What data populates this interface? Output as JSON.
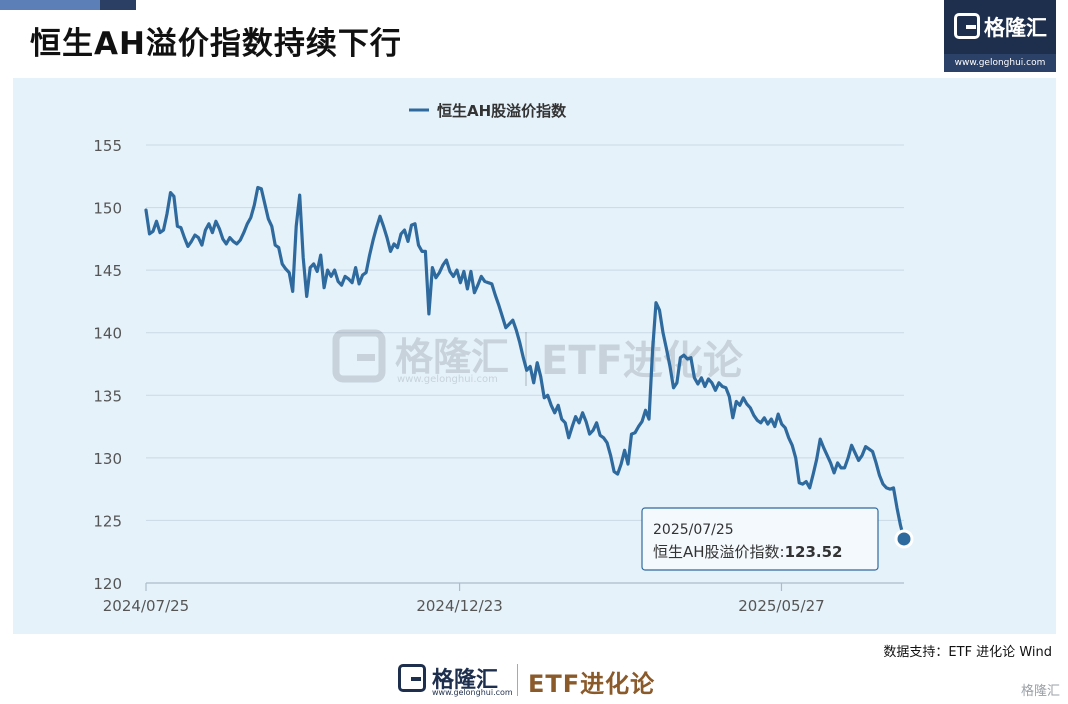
{
  "header": {
    "title": "恒生AH溢价指数持续下行",
    "logo_name": "格隆汇",
    "logo_url": "www.gelonghui.com"
  },
  "chart_data": {
    "type": "line",
    "title": "恒生AH溢价指数持续下行",
    "xlabel": "",
    "ylabel": "",
    "ylim": [
      120,
      155
    ],
    "yticks": [
      120,
      125,
      130,
      135,
      140,
      145,
      150,
      155
    ],
    "x_tick_labels": [
      "2024/07/25",
      "2024/12/23",
      "2025/05/27"
    ],
    "x_range": [
      "2024/07/25",
      "2025/07/25"
    ],
    "grid": "horizontal",
    "legend_position": "top-center",
    "color": "#2f6a9e",
    "series": [
      {
        "name": "恒生AH股溢价指数",
        "values": [
          149.8,
          147.9,
          148.1,
          148.9,
          148.0,
          148.2,
          149.5,
          151.2,
          150.9,
          148.5,
          148.4,
          147.6,
          146.9,
          147.3,
          147.8,
          147.6,
          147.0,
          148.2,
          148.7,
          148.0,
          148.9,
          148.3,
          147.5,
          147.1,
          147.6,
          147.3,
          147.1,
          147.4,
          148.0,
          148.7,
          149.2,
          150.2,
          151.6,
          151.5,
          150.3,
          149.1,
          148.5,
          147.0,
          146.8,
          145.5,
          145.1,
          144.8,
          143.3,
          148.5,
          151.0,
          146.0,
          142.9,
          145.2,
          145.5,
          144.9,
          146.2,
          143.6,
          145.0,
          144.5,
          145.0,
          144.1,
          143.8,
          144.5,
          144.3,
          144.0,
          145.2,
          143.9,
          144.6,
          144.8,
          146.2,
          147.4,
          148.4,
          149.3,
          148.5,
          147.6,
          146.5,
          147.1,
          146.8,
          147.9,
          148.2,
          147.3,
          148.6,
          148.7,
          147.0,
          146.5,
          146.5,
          141.5,
          145.2,
          144.4,
          144.8,
          145.4,
          145.8,
          144.9,
          144.5,
          145.0,
          144.0,
          144.9,
          143.5,
          144.9,
          143.2,
          143.8,
          144.5,
          144.1,
          144.0,
          143.9,
          143.0,
          142.2,
          141.3,
          140.4,
          140.7,
          141.0,
          140.2,
          139.2,
          138.0,
          137.0,
          137.3,
          136.0,
          137.6,
          136.5,
          134.8,
          135.0,
          134.2,
          133.6,
          134.2,
          133.1,
          132.8,
          131.6,
          132.5,
          133.3,
          132.8,
          133.6,
          132.9,
          131.9,
          132.2,
          132.8,
          131.8,
          131.6,
          131.2,
          130.2,
          128.9,
          128.7,
          129.5,
          130.6,
          129.5,
          131.9,
          132.0,
          132.5,
          132.9,
          133.8,
          133.1,
          138.5,
          142.4,
          141.8,
          140.0,
          138.7,
          137.3,
          135.6,
          136.0,
          138.0,
          138.2,
          137.9,
          138.0,
          136.4,
          135.9,
          136.4,
          135.7,
          136.3,
          136.0,
          135.4,
          136.0,
          135.7,
          135.6,
          134.9,
          133.2,
          134.5,
          134.2,
          134.8,
          134.3,
          134.0,
          133.4,
          133.0,
          132.8,
          133.2,
          132.7,
          133.1,
          132.5,
          133.5,
          132.7,
          132.4,
          131.6,
          131.0,
          130.0,
          128.0,
          127.9,
          128.1,
          127.6,
          128.7,
          129.9,
          131.5,
          130.8,
          130.2,
          129.6,
          128.8,
          129.6,
          129.2,
          129.2,
          130.0,
          131.0,
          130.4,
          129.8,
          130.2,
          130.9,
          130.7,
          130.5,
          129.6,
          128.6,
          127.9,
          127.6,
          127.5,
          127.6,
          126.0,
          124.6,
          123.52
        ]
      }
    ],
    "tooltip": {
      "date": "2025/07/25",
      "label": "恒生AH股溢价指数:",
      "value": "123.52"
    },
    "watermark": {
      "logo_name": "格隆汇",
      "logo_url": "www.gelonghui.com",
      "partner": "ETF进化论"
    }
  },
  "footer": {
    "source": "数据支持：ETF 进化论 Wind",
    "logo_name": "格隆汇",
    "logo_url": "www.gelonghui.com",
    "partner": "ETF进化论",
    "corner_mark": "格隆汇"
  }
}
